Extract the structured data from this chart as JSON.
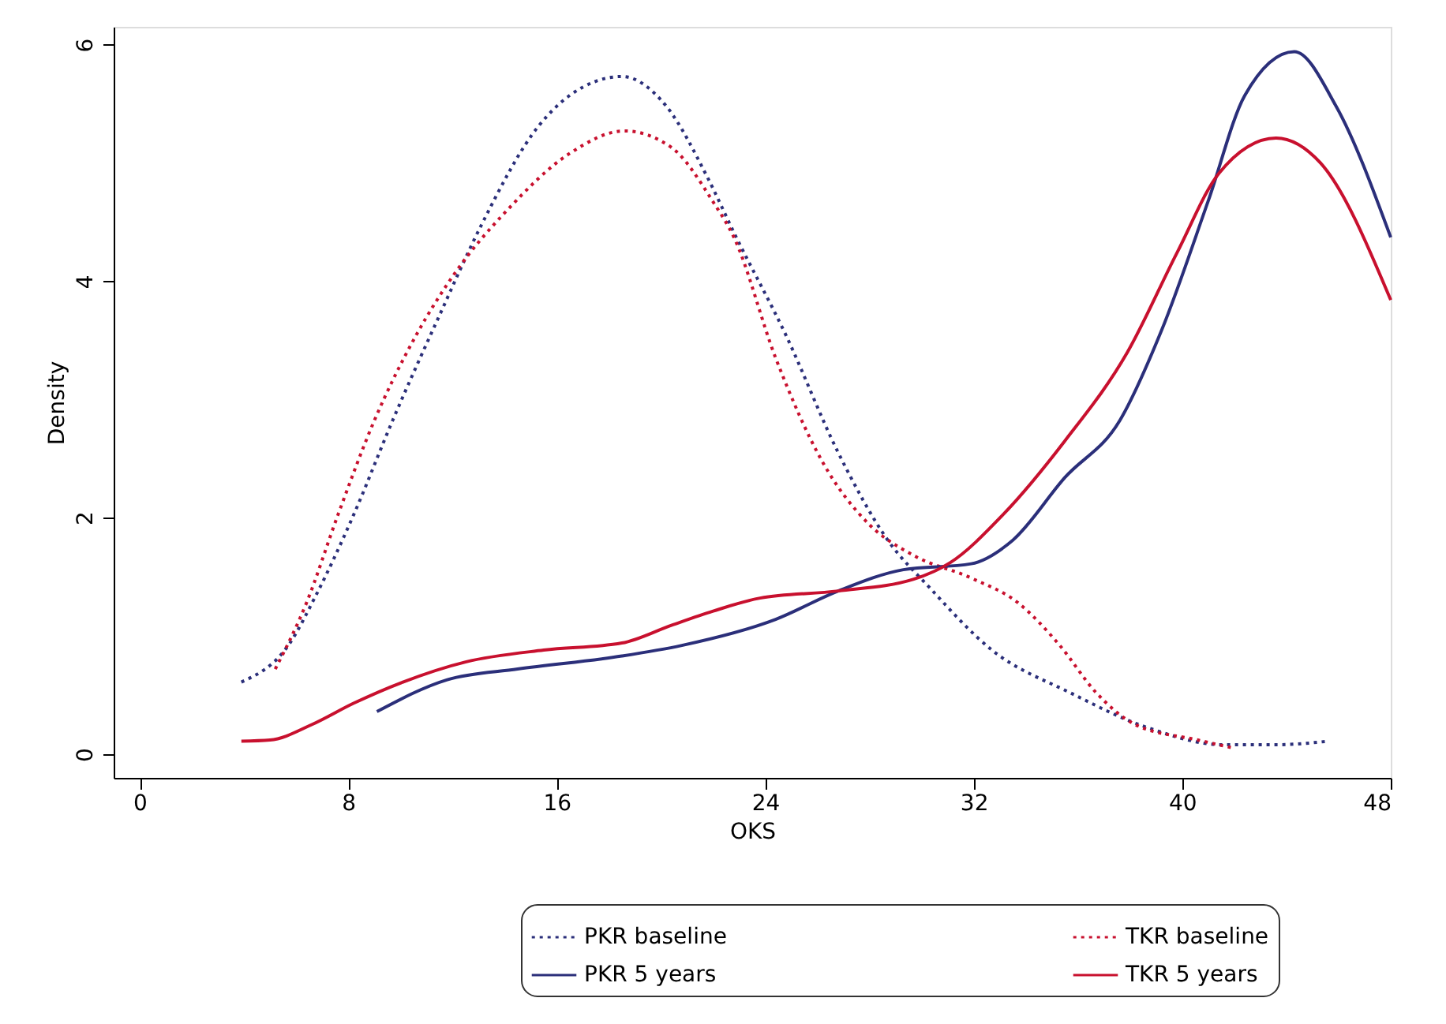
{
  "chart_data": {
    "type": "line",
    "xlabel": "OKS",
    "ylabel": "Density",
    "xlim": [
      -1,
      48
    ],
    "ylim": [
      -0.2,
      6.15
    ],
    "xticks": [
      0,
      8,
      16,
      24,
      32,
      40,
      48
    ],
    "yticks": [
      0,
      2,
      4,
      6
    ],
    "grid": false,
    "legend": "bottom",
    "marker": "none",
    "series": [
      {
        "name": "PKR baseline",
        "color": "#2b2f7a",
        "line_style": "dotted",
        "x": [
          3.9,
          5.7,
          6.8,
          8.2,
          9.7,
          11.5,
          13.1,
          15.3,
          16.5,
          18.5,
          20.2,
          21.8,
          22.8,
          24.8,
          26.8,
          28.7,
          30.3,
          32.7,
          35.7,
          38.6,
          41.6,
          43.6,
          45.6
        ],
        "values": [
          0.61,
          0.92,
          1.36,
          2.02,
          2.82,
          3.71,
          4.47,
          5.31,
          5.57,
          5.73,
          5.48,
          4.87,
          4.41,
          3.54,
          2.55,
          1.81,
          1.41,
          0.88,
          0.52,
          0.23,
          0.08,
          0.08,
          0.11
        ]
      },
      {
        "name": "TKR baseline",
        "color": "#c8102e",
        "line_style": "dotted",
        "x": [
          5.2,
          6.4,
          7.6,
          9.0,
          10.6,
          12.1,
          14.1,
          16.5,
          18.6,
          20.4,
          22.0,
          22.8,
          24.4,
          26.2,
          28.0,
          29.7,
          31.9,
          33.7,
          35.3,
          36.7,
          38.2,
          40.6,
          42.0
        ],
        "values": [
          0.72,
          1.28,
          2.02,
          2.82,
          3.54,
          4.07,
          4.6,
          5.08,
          5.27,
          5.13,
          4.67,
          4.37,
          3.35,
          2.47,
          1.94,
          1.68,
          1.49,
          1.28,
          0.92,
          0.52,
          0.25,
          0.12,
          0.05
        ]
      },
      {
        "name": "PKR 5 years",
        "color": "#2b2f7a",
        "line_style": "solid",
        "x": [
          9.1,
          11.8,
          14.5,
          18.5,
          20.8,
          24.4,
          26.8,
          29.3,
          31.9,
          33.5,
          35.5,
          37.6,
          39.2,
          41.0,
          42.4,
          44.3,
          45.9,
          48.0
        ],
        "values": [
          0.36,
          0.63,
          0.72,
          0.83,
          0.92,
          1.14,
          1.38,
          1.56,
          1.61,
          1.81,
          2.34,
          2.82,
          3.58,
          4.68,
          5.57,
          5.94,
          5.48,
          4.37
        ]
      },
      {
        "name": "TKR 5 years",
        "color": "#c8102e",
        "line_style": "solid",
        "x": [
          3.9,
          5.0,
          6.6,
          8.2,
          10.1,
          12.5,
          15.5,
          18.5,
          20.4,
          22.0,
          23.8,
          26.8,
          29.7,
          31.1,
          33.1,
          35.5,
          37.9,
          39.8,
          41.4,
          43.6,
          45.3,
          48.0
        ],
        "values": [
          0.11,
          0.12,
          0.25,
          0.43,
          0.61,
          0.78,
          0.88,
          0.94,
          1.09,
          1.21,
          1.32,
          1.38,
          1.48,
          1.62,
          2.02,
          2.65,
          3.4,
          4.24,
          4.91,
          5.21,
          5.0,
          3.84
        ]
      }
    ]
  }
}
